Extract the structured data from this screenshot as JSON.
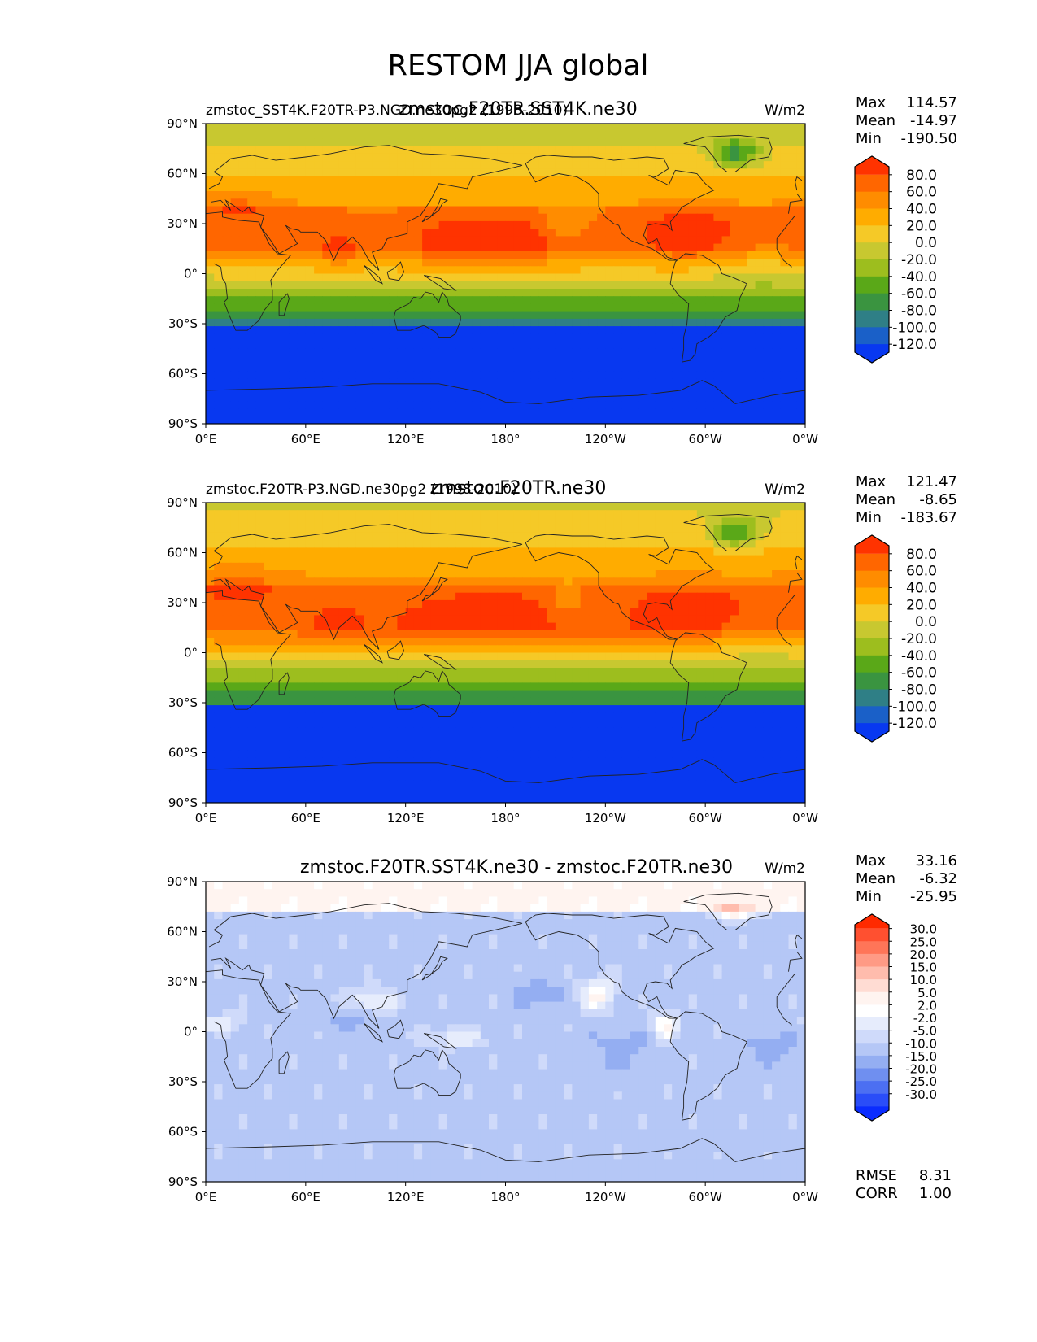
{
  "figure": {
    "title": "RESTOM JJA global"
  },
  "chart_data": [
    {
      "type": "heatmap",
      "title_left": "zmstoc_SST4K.F20TR-P3.NGD.ne30pg2 (1998-2010)",
      "title_center": "zmstoc.F20TR.SST4K.ne30",
      "units": "W/m2",
      "stats": {
        "Max": "114.57",
        "Mean": "-14.97",
        "Min": "-190.50"
      },
      "xticks": [
        "0°E",
        "60°E",
        "120°E",
        "180°",
        "120°W",
        "60°W",
        "0°W"
      ],
      "yticks": [
        "90°N",
        "60°N",
        "30°N",
        "0°",
        "30°S",
        "60°S",
        "90°S"
      ],
      "xlim": [
        0,
        360
      ],
      "ylim": [
        -90,
        90
      ],
      "colorbar_ticks": [
        "80.0",
        "60.0",
        "40.0",
        "20.0",
        "0.0",
        "-20.0",
        "-40.0",
        "-60.0",
        "-80.0",
        "-100.0",
        "-120.0"
      ],
      "colorbar_colors": [
        "#ff3300",
        "#ff6600",
        "#ff8c00",
        "#ffac00",
        "#f5c927",
        "#c8c830",
        "#9dbe1e",
        "#5aa818",
        "#3a9440",
        "#2f7f86",
        "#1a60c8",
        "#0838f0"
      ]
    },
    {
      "type": "heatmap",
      "title_left": "zmstoc.F20TR-P3.NGD.ne30pg2 (1998-2010)",
      "title_center": "zmstoc.F20TR.ne30",
      "units": "W/m2",
      "stats": {
        "Max": "121.47",
        "Mean": "-8.65",
        "Min": "-183.67"
      },
      "xticks": [
        "0°E",
        "60°E",
        "120°E",
        "180°",
        "120°W",
        "60°W",
        "0°W"
      ],
      "yticks": [
        "90°N",
        "60°N",
        "30°N",
        "0°",
        "30°S",
        "60°S",
        "90°S"
      ],
      "xlim": [
        0,
        360
      ],
      "ylim": [
        -90,
        90
      ],
      "colorbar_ticks": [
        "80.0",
        "60.0",
        "40.0",
        "20.0",
        "0.0",
        "-20.0",
        "-40.0",
        "-60.0",
        "-80.0",
        "-100.0",
        "-120.0"
      ],
      "colorbar_colors": [
        "#ff3300",
        "#ff6600",
        "#ff8c00",
        "#ffac00",
        "#f5c927",
        "#c8c830",
        "#9dbe1e",
        "#5aa818",
        "#3a9440",
        "#2f7f86",
        "#1a60c8",
        "#0838f0"
      ]
    },
    {
      "type": "heatmap",
      "title_left": "",
      "title_center": "zmstoc.F20TR.SST4K.ne30 - zmstoc.F20TR.ne30",
      "units": "W/m2",
      "stats": {
        "Max": "33.16",
        "Mean": "-6.32",
        "Min": "-25.95"
      },
      "metrics": {
        "RMSE": "8.31",
        "CORR": "1.00"
      },
      "xticks": [
        "0°E",
        "60°E",
        "120°E",
        "180°",
        "120°W",
        "60°W",
        "0°W"
      ],
      "yticks": [
        "90°N",
        "60°N",
        "30°N",
        "0°",
        "30°S",
        "60°S",
        "90°S"
      ],
      "xlim": [
        0,
        360
      ],
      "ylim": [
        -90,
        90
      ],
      "colorbar_ticks": [
        "30.0",
        "25.0",
        "20.0",
        "15.0",
        "10.0",
        "5.0",
        "2.0",
        "-2.0",
        "-5.0",
        "-10.0",
        "-15.0",
        "-20.0",
        "-25.0",
        "-30.0"
      ],
      "colorbar_colors": [
        "#ff2a00",
        "#ff5030",
        "#ff7558",
        "#ff9a85",
        "#ffbcad",
        "#ffdcd3",
        "#fff4f0",
        "#ffffff",
        "#e6ecfc",
        "#cfdafa",
        "#b5c7f6",
        "#94aef2",
        "#6f8ff0",
        "#4c6ff2",
        "#2a4df8",
        "#0a2cff"
      ]
    }
  ]
}
